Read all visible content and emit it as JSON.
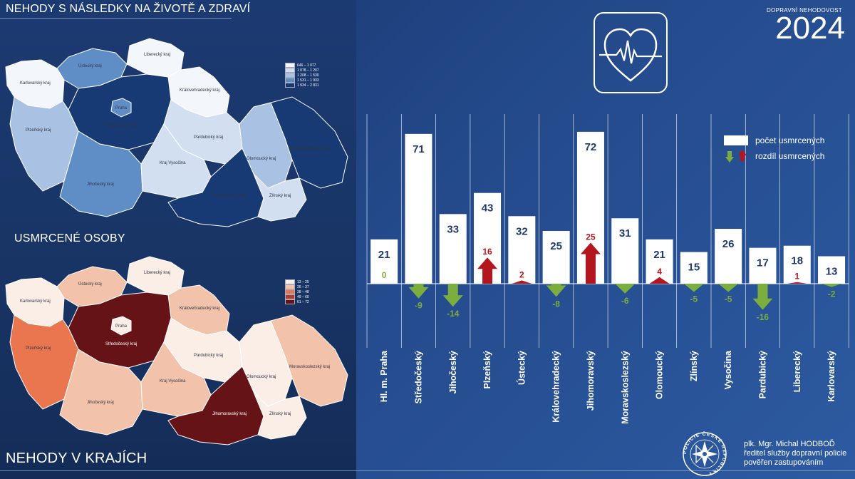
{
  "headings": {
    "top": "NEHODY S NÁSLEDKY NA ŽIVOTĚ A ZDRAVÍ",
    "middle": "USMRCENÉ OSOBY",
    "bottom": "NEHODY V KRAJÍCH"
  },
  "year_caption": "DOPRAVNÍ NEHODOVOST",
  "year": "2024",
  "map_region_labels": [
    "Karlovarský kraj",
    "Ústecký kraj",
    "Liberecký kraj",
    "Královehradecký kraj",
    "Praha",
    "Středočeský kraj",
    "Plzeňský kraj",
    "Pardubický kraj",
    "Jihočeský kraj",
    "Kraj Vysočina",
    "Olomoucký kraj",
    "Moravskoslezský kraj",
    "Jihomoravský kraj",
    "Zlínský kraj"
  ],
  "legend_top": [
    "646 – 1 077",
    "1 078 – 1 207",
    "1 208 – 1 530",
    "1 531 – 1 933",
    "1 934 – 2 831"
  ],
  "legend_top_colors": [
    "#f3f6fb",
    "#d2dff0",
    "#a9c2e3",
    "#5f8dc6",
    "#173a74"
  ],
  "legend_bottom": [
    "13 – 25",
    "26 – 37",
    "38 – 48",
    "49 – 60",
    "61 – 72"
  ],
  "legend_bottom_colors": [
    "#fbeee6",
    "#f2c3aa",
    "#e9764f",
    "#b33b2c",
    "#661317"
  ],
  "chart_legend": {
    "count": "počet usmrcených",
    "diff": "rozdíl usmrcených"
  },
  "colors": {
    "bar": "#ffffff",
    "increase": "#b3171d",
    "decrease": "#7cae3f",
    "value_text": "#1f3a6d"
  },
  "chart_data": {
    "type": "bar",
    "categories": [
      "Hl. m. Praha",
      "Středočeský",
      "Jihočeský",
      "Plzeňský",
      "Ústecký",
      "Královehradecký",
      "Jihomoravský",
      "Moravskoslezský",
      "Olomoucký",
      "Zlínský",
      "Vysočina",
      "Pardubický",
      "Liberecký",
      "Karlovarský"
    ],
    "series": [
      {
        "name": "počet usmrcených",
        "values": [
          21,
          71,
          33,
          43,
          32,
          25,
          72,
          31,
          21,
          15,
          26,
          17,
          18,
          13
        ]
      },
      {
        "name": "rozdíl usmrcených",
        "values": [
          0,
          -9,
          -14,
          16,
          2,
          -8,
          25,
          -6,
          4,
          -5,
          -5,
          -16,
          1,
          -2
        ]
      }
    ]
  },
  "signature": {
    "line1": "plk. Mgr. Michal HODBOĎ",
    "line2": "ředitel služby dopravní policie",
    "line3": "pověřen zastupováním"
  },
  "logo_text": "POLICIE ČESKÉ REPUBLIKY"
}
